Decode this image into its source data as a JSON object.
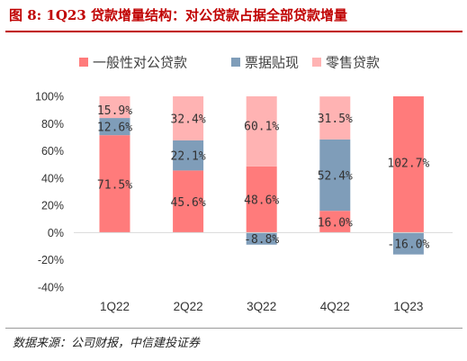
{
  "figure": {
    "title": "图 8: 1Q23 贷款增量结构：对公贷款占据全部贷款增量",
    "source": "数据来源：公司财报，中信建投证券"
  },
  "chart_data": {
    "type": "bar",
    "stacked": true,
    "percent_stacked": true,
    "categories": [
      "1Q22",
      "2Q22",
      "3Q22",
      "4Q22",
      "1Q23"
    ],
    "series": [
      {
        "name": "一般性对公贷款",
        "color": "#ff7b7b",
        "values": [
          71.5,
          45.6,
          48.6,
          16.0,
          102.7
        ],
        "labels": [
          "71.5%",
          "45.6%",
          "48.6%",
          "16.0%",
          "102.7%"
        ]
      },
      {
        "name": "票据贴现",
        "color": "#7f9db9",
        "values": [
          12.6,
          22.1,
          -8.8,
          52.4,
          -16.0
        ],
        "labels": [
          "12.6%",
          "22.1%",
          "-8.8%",
          "52.4%",
          "-16.0%"
        ]
      },
      {
        "name": "零售贷款",
        "color": "#ffb3b3",
        "values": [
          15.9,
          32.4,
          60.1,
          31.5,
          null
        ],
        "labels": [
          "15.9%",
          "32.4%",
          "60.1%",
          "31.5%",
          ""
        ]
      }
    ],
    "ylim": [
      -40,
      100
    ],
    "yticks": [
      -40,
      -20,
      0,
      20,
      40,
      60,
      80,
      100
    ],
    "ytick_labels": [
      "-40%",
      "-20%",
      "0%",
      "20%",
      "40%",
      "60%",
      "80%",
      "100%"
    ],
    "xlabel": "",
    "ylabel": "",
    "legend_position": "top",
    "grid": false
  }
}
